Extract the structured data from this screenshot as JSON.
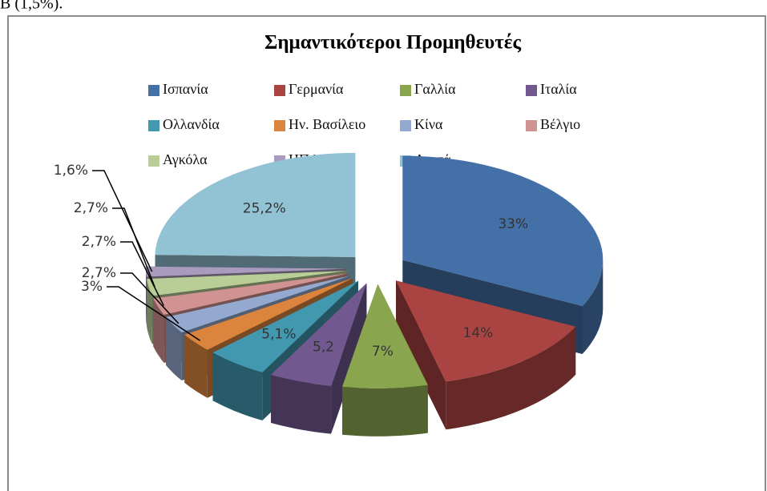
{
  "fragment": "B (1,5%).",
  "chart_data": {
    "type": "pie3d",
    "title": "Σημαντικότεροι Προμηθευτές",
    "categories": [
      "Ισπανία",
      "Γερμανία",
      "Γαλλία",
      "Ιταλία",
      "Ολλανδία",
      "Ην. Βασίλειο",
      "Κίνα",
      "Βέλγιο",
      "Αγκόλα",
      "ΗΠΑ",
      "Λοιπά"
    ],
    "values": [
      33,
      14,
      7,
      5.2,
      5.1,
      3,
      2.7,
      2.7,
      2.7,
      1.6,
      25.2
    ],
    "value_labels": [
      "33%",
      "14%",
      "7%",
      "5,2",
      "5,1%",
      "3%",
      "2,7%",
      "2,7%",
      "2,7%",
      "1,6%",
      "25,2%"
    ],
    "colors": [
      "#4470a8",
      "#aa4442",
      "#89a54e",
      "#71588f",
      "#4198af",
      "#db843d",
      "#93a9cf",
      "#d19392",
      "#b9cd96",
      "#a99bbd",
      "#92c3d5"
    ],
    "legend": "top"
  }
}
